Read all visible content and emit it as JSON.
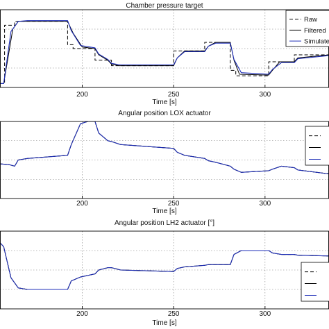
{
  "chart_data": [
    {
      "type": "line",
      "title": "Chamber pressure target",
      "xlabel": "Time [s]",
      "xlim": [
        155,
        335
      ],
      "ylim": [
        0,
        1
      ],
      "xticks": [
        200,
        250,
        300
      ],
      "grid": true,
      "legend_placement": "top-right",
      "series": [
        {
          "name": "Raw",
          "style": "dashed",
          "color": "#000000",
          "x": [
            155,
            157.5,
            157.5,
            163,
            163,
            192,
            192,
            195,
            195,
            207,
            207,
            216,
            216,
            250,
            250,
            267,
            267,
            281,
            281,
            284,
            284,
            302,
            302,
            316,
            316,
            335
          ],
          "y": [
            0.05,
            0.05,
            0.8,
            0.8,
            0.85,
            0.85,
            0.55,
            0.55,
            0.5,
            0.5,
            0.35,
            0.35,
            0.28,
            0.28,
            0.47,
            0.47,
            0.58,
            0.58,
            0.22,
            0.22,
            0.15,
            0.15,
            0.33,
            0.33,
            0.42,
            0.42
          ]
        },
        {
          "name": "Filtered",
          "style": "solid",
          "color": "#000000",
          "x": [
            155,
            157,
            162,
            165,
            170,
            192,
            195,
            200,
            207,
            209,
            214,
            216,
            220,
            250,
            252,
            256,
            267,
            269,
            273,
            281,
            283,
            286,
            302,
            304,
            308,
            316,
            318,
            335
          ],
          "y": [
            0.05,
            0.05,
            0.75,
            0.85,
            0.85,
            0.85,
            0.7,
            0.52,
            0.5,
            0.42,
            0.35,
            0.3,
            0.28,
            0.28,
            0.38,
            0.47,
            0.47,
            0.53,
            0.58,
            0.58,
            0.35,
            0.17,
            0.16,
            0.22,
            0.33,
            0.33,
            0.38,
            0.42
          ]
        },
        {
          "name": "Simulated",
          "style": "solid",
          "color": "#1f2fb8",
          "x": [
            155,
            157,
            161,
            165,
            170,
            192,
            194,
            199,
            207,
            209,
            214,
            216,
            221,
            250,
            252,
            256,
            267,
            269,
            273,
            281,
            283,
            287,
            302,
            304,
            309,
            316,
            318,
            335
          ],
          "y": [
            0.05,
            0.05,
            0.72,
            0.85,
            0.86,
            0.86,
            0.73,
            0.54,
            0.51,
            0.43,
            0.36,
            0.31,
            0.29,
            0.29,
            0.38,
            0.46,
            0.46,
            0.53,
            0.57,
            0.57,
            0.36,
            0.19,
            0.17,
            0.23,
            0.32,
            0.32,
            0.37,
            0.41
          ]
        }
      ]
    },
    {
      "type": "line",
      "title": "Angular position LOX actuator",
      "xlabel": "Time [s]",
      "xlim": [
        155,
        335
      ],
      "ylim": [
        0,
        1
      ],
      "xticks": [
        200,
        250,
        300
      ],
      "grid": true,
      "legend_placement": "top-right",
      "series": [
        {
          "name": "",
          "style": "dashed",
          "color": "#000000",
          "x": [
            155,
            160,
            163,
            165,
            170,
            192,
            194,
            199,
            203,
            207,
            209,
            214,
            216,
            221,
            250,
            252,
            256,
            267,
            269,
            273,
            281,
            283,
            287,
            302,
            304,
            309,
            316,
            318,
            335
          ],
          "y": [
            0.45,
            0.44,
            0.42,
            0.5,
            0.52,
            0.56,
            0.7,
            0.97,
            1.0,
            1.0,
            0.85,
            0.75,
            0.74,
            0.7,
            0.65,
            0.6,
            0.56,
            0.52,
            0.49,
            0.47,
            0.42,
            0.38,
            0.34,
            0.36,
            0.38,
            0.42,
            0.4,
            0.37,
            0.32
          ]
        },
        {
          "name": "",
          "style": "solid",
          "color": "#000000",
          "x": [
            155,
            160,
            163,
            165,
            170,
            192,
            194,
            199,
            203,
            207,
            209,
            214,
            216,
            221,
            250,
            252,
            256,
            267,
            269,
            273,
            281,
            283,
            287,
            302,
            304,
            309,
            316,
            318,
            335
          ],
          "y": [
            0.45,
            0.44,
            0.42,
            0.5,
            0.52,
            0.56,
            0.7,
            0.97,
            1.0,
            1.0,
            0.85,
            0.75,
            0.74,
            0.7,
            0.65,
            0.6,
            0.56,
            0.52,
            0.49,
            0.47,
            0.42,
            0.38,
            0.34,
            0.36,
            0.38,
            0.42,
            0.4,
            0.37,
            0.32
          ]
        },
        {
          "name": "",
          "style": "solid",
          "color": "#1f2fb8",
          "x": [
            155,
            160,
            163,
            165,
            170,
            192,
            194,
            199,
            203,
            207,
            209,
            214,
            216,
            221,
            250,
            252,
            256,
            267,
            269,
            273,
            281,
            283,
            287,
            302,
            304,
            309,
            316,
            318,
            335
          ],
          "y": [
            0.45,
            0.44,
            0.42,
            0.5,
            0.52,
            0.56,
            0.7,
            0.97,
            1.0,
            1.0,
            0.85,
            0.75,
            0.74,
            0.7,
            0.65,
            0.6,
            0.56,
            0.52,
            0.49,
            0.47,
            0.42,
            0.38,
            0.34,
            0.36,
            0.38,
            0.42,
            0.4,
            0.37,
            0.32
          ]
        }
      ]
    },
    {
      "type": "line",
      "title": "Angular position LH2 actuator [°]",
      "xlabel": "Time [s]",
      "xlim": [
        155,
        335
      ],
      "ylim": [
        0,
        1
      ],
      "xticks": [
        200,
        250,
        300
      ],
      "grid": true,
      "legend_placement": "bottom-right",
      "series": [
        {
          "name": "",
          "style": "dashed",
          "color": "#000000",
          "x": [
            155,
            157,
            161,
            165,
            170,
            192,
            194,
            199,
            207,
            209,
            214,
            216,
            221,
            250,
            252,
            256,
            267,
            269,
            273,
            281,
            283,
            287,
            302,
            304,
            309,
            316,
            318,
            335
          ],
          "y": [
            0.85,
            0.8,
            0.4,
            0.27,
            0.25,
            0.25,
            0.36,
            0.41,
            0.45,
            0.5,
            0.53,
            0.53,
            0.5,
            0.48,
            0.52,
            0.54,
            0.56,
            0.57,
            0.57,
            0.57,
            0.7,
            0.75,
            0.75,
            0.72,
            0.7,
            0.7,
            0.69,
            0.68
          ]
        },
        {
          "name": "",
          "style": "solid",
          "color": "#000000",
          "x": [
            155,
            157,
            161,
            165,
            170,
            192,
            194,
            199,
            207,
            209,
            214,
            216,
            221,
            250,
            252,
            256,
            267,
            269,
            273,
            281,
            283,
            287,
            302,
            304,
            309,
            316,
            318,
            335
          ],
          "y": [
            0.85,
            0.8,
            0.4,
            0.27,
            0.25,
            0.25,
            0.36,
            0.41,
            0.45,
            0.5,
            0.53,
            0.53,
            0.5,
            0.48,
            0.52,
            0.54,
            0.56,
            0.57,
            0.57,
            0.57,
            0.7,
            0.75,
            0.75,
            0.72,
            0.7,
            0.7,
            0.69,
            0.68
          ]
        },
        {
          "name": "",
          "style": "solid",
          "color": "#1f2fb8",
          "x": [
            155,
            157,
            161,
            165,
            170,
            192,
            194,
            199,
            207,
            209,
            214,
            216,
            221,
            250,
            252,
            256,
            267,
            269,
            273,
            281,
            283,
            287,
            302,
            304,
            309,
            316,
            318,
            335
          ],
          "y": [
            0.85,
            0.8,
            0.4,
            0.27,
            0.25,
            0.25,
            0.36,
            0.41,
            0.45,
            0.5,
            0.53,
            0.53,
            0.5,
            0.48,
            0.52,
            0.54,
            0.56,
            0.57,
            0.57,
            0.57,
            0.7,
            0.75,
            0.75,
            0.72,
            0.7,
            0.7,
            0.69,
            0.68
          ]
        }
      ]
    }
  ]
}
